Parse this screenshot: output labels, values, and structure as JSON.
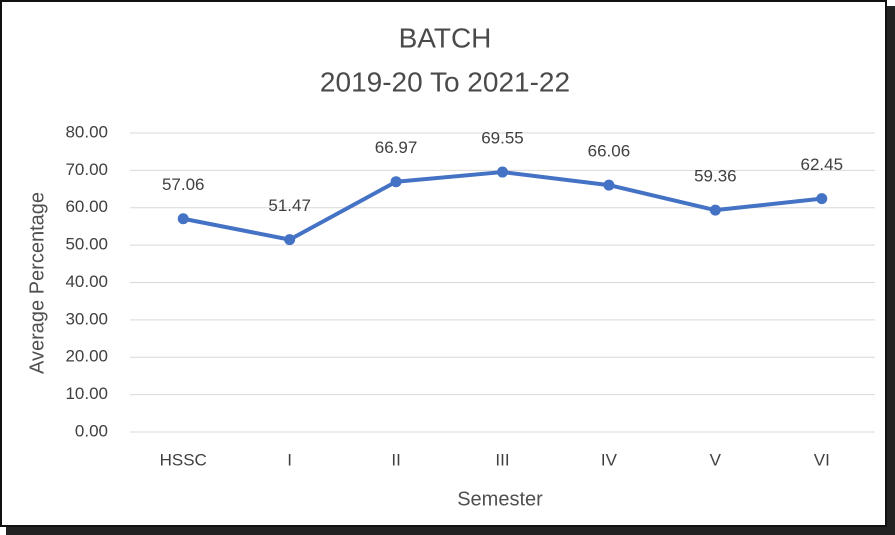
{
  "chart_data": {
    "type": "line",
    "title": [
      "BATCH",
      "2019-20 To 2021-22"
    ],
    "x_label": "Semester",
    "y_label": "Average Percentage",
    "categories": [
      "HSSC",
      "I",
      "II",
      "III",
      "IV",
      "V",
      "VI"
    ],
    "series": [
      {
        "name": "Average Percentage",
        "color": "#4472c4",
        "values": [
          57.06,
          51.47,
          66.97,
          69.55,
          66.06,
          59.36,
          62.45
        ]
      }
    ],
    "ylim": [
      0,
      80
    ],
    "yticks": [
      {
        "value": 0,
        "label": "0.00"
      },
      {
        "value": 10,
        "label": "10.00"
      },
      {
        "value": 20,
        "label": "20.00"
      },
      {
        "value": 30,
        "label": "30.00"
      },
      {
        "value": 40,
        "label": "40.00"
      },
      {
        "value": 50,
        "label": "50.00"
      },
      {
        "value": 60,
        "label": "60.00"
      },
      {
        "value": 70,
        "label": "70.00"
      },
      {
        "value": 80,
        "label": "80.00"
      }
    ],
    "grid": true
  }
}
